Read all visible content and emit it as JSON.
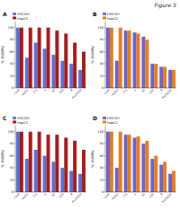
{
  "title": "Figure 5",
  "chart_data": [
    {
      "type": "bar",
      "title": "A",
      "y_label": "% viability",
      "categories": [
        "Cont",
        "H2O2",
        "0.1",
        "1",
        "10",
        "100",
        "R",
        "R+H2O2"
      ],
      "series": [
        {
          "name": "HEK293",
          "color": "#5b6fd0",
          "values": [
            100,
            50,
            75,
            65,
            55,
            45,
            40,
            30
          ]
        },
        {
          "name": "HepG2",
          "color": "#a01818",
          "values": [
            100,
            100,
            100,
            100,
            95,
            90,
            75,
            60
          ]
        }
      ],
      "ylim": [
        0,
        110
      ],
      "yticks": [
        0,
        20,
        40,
        60,
        80,
        100
      ],
      "grid": false,
      "legend": "top"
    },
    {
      "type": "bar",
      "title": "B",
      "y_label": "% viability",
      "categories": [
        "Cont",
        "H2O2",
        "0.1",
        "1",
        "10",
        "100",
        "R",
        "R+H2O2"
      ],
      "series": [
        {
          "name": "HEK293",
          "color": "#6b62c6",
          "values": [
            100,
            45,
            95,
            92,
            85,
            40,
            35,
            30
          ]
        },
        {
          "name": "HepG2",
          "color": "#e07b22",
          "values": [
            100,
            100,
            95,
            90,
            80,
            40,
            35,
            30
          ]
        }
      ],
      "ylim": [
        0,
        110
      ],
      "yticks": [
        0,
        20,
        40,
        60,
        80,
        100
      ],
      "grid": false,
      "legend": "top"
    },
    {
      "type": "bar",
      "title": "C",
      "y_label": "% viability",
      "categories": [
        "Cont",
        "H2O2",
        "0.1",
        "1",
        "10",
        "100",
        "R",
        "R+H2O2"
      ],
      "series": [
        {
          "name": "HEK293",
          "color": "#5b6fd0",
          "values": [
            100,
            55,
            70,
            60,
            50,
            40,
            35,
            30
          ]
        },
        {
          "name": "HepG2",
          "color": "#a01818",
          "values": [
            100,
            100,
            100,
            95,
            95,
            90,
            85,
            70
          ]
        }
      ],
      "ylim": [
        0,
        110
      ],
      "yticks": [
        0,
        20,
        40,
        60,
        80,
        100
      ],
      "grid": false,
      "legend": "top"
    },
    {
      "type": "bar",
      "title": "D",
      "y_label": "% viability",
      "categories": [
        "Cont",
        "H2O2",
        "0.1",
        "1",
        "10",
        "100",
        "R",
        "R+H2O2"
      ],
      "series": [
        {
          "name": "HEK293",
          "color": "#6b62c6",
          "values": [
            100,
            40,
            95,
            90,
            80,
            55,
            45,
            30
          ]
        },
        {
          "name": "HepG2",
          "color": "#e07b22",
          "values": [
            100,
            100,
            95,
            92,
            85,
            60,
            50,
            35
          ]
        }
      ],
      "ylim": [
        0,
        110
      ],
      "yticks": [
        0,
        20,
        40,
        60,
        80,
        100
      ],
      "grid": false,
      "legend": "top"
    }
  ]
}
